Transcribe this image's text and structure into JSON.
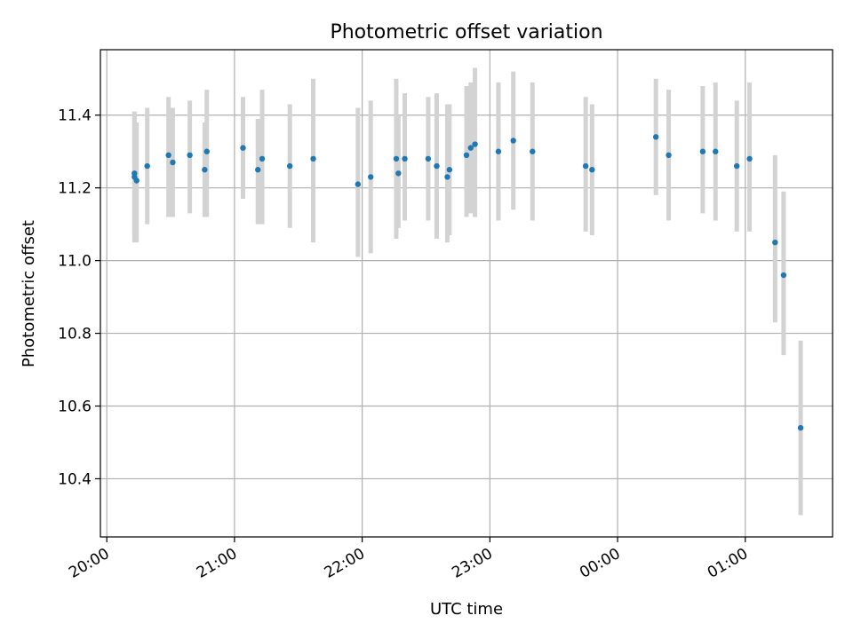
{
  "chart_data": {
    "type": "scatter",
    "title": "Photometric offset variation",
    "xlabel": "UTC time",
    "ylabel": "Photometric offset",
    "xlim": [
      "19:57",
      "25:41"
    ],
    "ylim": [
      10.24,
      11.58
    ],
    "x_ticks": [
      "20:00",
      "21:00",
      "22:00",
      "23:00",
      "00:00",
      "01:00"
    ],
    "y_ticks": [
      10.4,
      10.6,
      10.8,
      11.0,
      11.2,
      11.4
    ],
    "grid": true,
    "x_tick_rotation_deg": 30,
    "colors": {
      "marker": "#1f77b4",
      "errorbar": "#d3d3d3",
      "grid": "#b0b0b0"
    },
    "points": [
      {
        "t": "20:13",
        "y": 11.24,
        "lo": 11.07,
        "hi": 11.41
      },
      {
        "t": "20:13",
        "y": 11.23,
        "lo": 11.05,
        "hi": 11.4
      },
      {
        "t": "20:14",
        "y": 11.22,
        "lo": 11.05,
        "hi": 11.38
      },
      {
        "t": "20:19",
        "y": 11.26,
        "lo": 11.1,
        "hi": 11.42
      },
      {
        "t": "20:29",
        "y": 11.29,
        "lo": 11.12,
        "hi": 11.45
      },
      {
        "t": "20:31",
        "y": 11.27,
        "lo": 11.12,
        "hi": 11.42
      },
      {
        "t": "20:39",
        "y": 11.29,
        "lo": 11.13,
        "hi": 11.44
      },
      {
        "t": "20:46",
        "y": 11.25,
        "lo": 11.12,
        "hi": 11.38
      },
      {
        "t": "20:47",
        "y": 11.3,
        "lo": 11.12,
        "hi": 11.47
      },
      {
        "t": "21:04",
        "y": 11.31,
        "lo": 11.17,
        "hi": 11.45
      },
      {
        "t": "21:11",
        "y": 11.25,
        "lo": 11.1,
        "hi": 11.39
      },
      {
        "t": "21:13",
        "y": 11.28,
        "lo": 11.1,
        "hi": 11.47
      },
      {
        "t": "21:26",
        "y": 11.26,
        "lo": 11.09,
        "hi": 11.43
      },
      {
        "t": "21:37",
        "y": 11.28,
        "lo": 11.05,
        "hi": 11.5
      },
      {
        "t": "21:58",
        "y": 11.21,
        "lo": 11.01,
        "hi": 11.42
      },
      {
        "t": "22:04",
        "y": 11.23,
        "lo": 11.02,
        "hi": 11.44
      },
      {
        "t": "22:16",
        "y": 11.28,
        "lo": 11.06,
        "hi": 11.5
      },
      {
        "t": "22:17",
        "y": 11.24,
        "lo": 11.09,
        "hi": 11.4
      },
      {
        "t": "22:20",
        "y": 11.28,
        "lo": 11.11,
        "hi": 11.46
      },
      {
        "t": "22:31",
        "y": 11.28,
        "lo": 11.11,
        "hi": 11.45
      },
      {
        "t": "22:35",
        "y": 11.26,
        "lo": 11.06,
        "hi": 11.46
      },
      {
        "t": "22:40",
        "y": 11.23,
        "lo": 11.05,
        "hi": 11.43
      },
      {
        "t": "22:41",
        "y": 11.25,
        "lo": 11.07,
        "hi": 11.43
      },
      {
        "t": "22:49",
        "y": 11.29,
        "lo": 11.12,
        "hi": 11.48
      },
      {
        "t": "22:51",
        "y": 11.31,
        "lo": 11.13,
        "hi": 11.49
      },
      {
        "t": "22:53",
        "y": 11.32,
        "lo": 11.12,
        "hi": 11.53
      },
      {
        "t": "23:04",
        "y": 11.3,
        "lo": 11.11,
        "hi": 11.49
      },
      {
        "t": "23:11",
        "y": 11.33,
        "lo": 11.14,
        "hi": 11.52
      },
      {
        "t": "23:20",
        "y": 11.3,
        "lo": 11.11,
        "hi": 11.49
      },
      {
        "t": "23:45",
        "y": 11.26,
        "lo": 11.08,
        "hi": 11.45
      },
      {
        "t": "23:48",
        "y": 11.25,
        "lo": 11.07,
        "hi": 11.43
      },
      {
        "t": "24:18",
        "y": 11.34,
        "lo": 11.18,
        "hi": 11.5
      },
      {
        "t": "24:24",
        "y": 11.29,
        "lo": 11.11,
        "hi": 11.47
      },
      {
        "t": "24:40",
        "y": 11.3,
        "lo": 11.13,
        "hi": 11.48
      },
      {
        "t": "24:46",
        "y": 11.3,
        "lo": 11.11,
        "hi": 11.49
      },
      {
        "t": "24:56",
        "y": 11.26,
        "lo": 11.08,
        "hi": 11.44
      },
      {
        "t": "25:02",
        "y": 11.28,
        "lo": 11.08,
        "hi": 11.49
      },
      {
        "t": "25:14",
        "y": 11.05,
        "lo": 10.83,
        "hi": 11.29
      },
      {
        "t": "25:18",
        "y": 10.96,
        "lo": 10.74,
        "hi": 11.19
      },
      {
        "t": "25:26",
        "y": 10.54,
        "lo": 10.3,
        "hi": 10.78
      }
    ]
  }
}
